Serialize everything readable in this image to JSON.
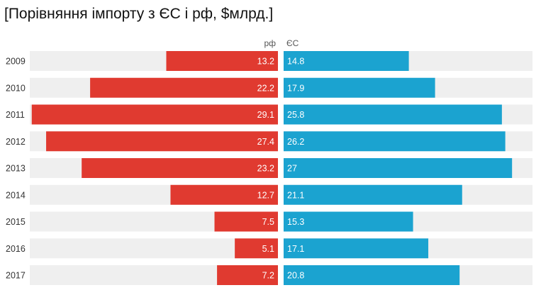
{
  "title": "[Порівняння імпорту з ЄС і рф, $млрд.]",
  "colors": {
    "left_bar": "#e03a30",
    "right_bar": "#1ba3d0",
    "track": "#efefef",
    "label_text": "#ffffff",
    "category_text": "#333333",
    "series_header": "#555555"
  },
  "chart_data": {
    "type": "bar",
    "orientation": "horizontal",
    "layout": "butterfly",
    "categories": [
      "2009",
      "2010",
      "2011",
      "2012",
      "2013",
      "2014",
      "2015",
      "2016",
      "2017"
    ],
    "series": [
      {
        "name": "рф",
        "side": "left",
        "values": [
          13.2,
          22.2,
          29.1,
          27.4,
          23.2,
          12.7,
          7.5,
          5.1,
          7.2
        ]
      },
      {
        "name": "ЄС",
        "side": "right",
        "values": [
          14.8,
          17.9,
          25.8,
          26.2,
          27,
          21.1,
          15.3,
          17.1,
          20.8
        ]
      }
    ],
    "value_labels": {
      "рф": [
        "13.2",
        "22.2",
        "29.1",
        "27.4",
        "23.2",
        "12.7",
        "7.5",
        "5.1",
        "7.2"
      ],
      "ЄС": [
        "14.8",
        "17.9",
        "25.8",
        "26.2",
        "27",
        "21.1",
        "15.3",
        "17.1",
        "20.8"
      ]
    },
    "xlim": [
      0,
      29.5
    ],
    "grid": false,
    "legend": "series names above each half"
  }
}
